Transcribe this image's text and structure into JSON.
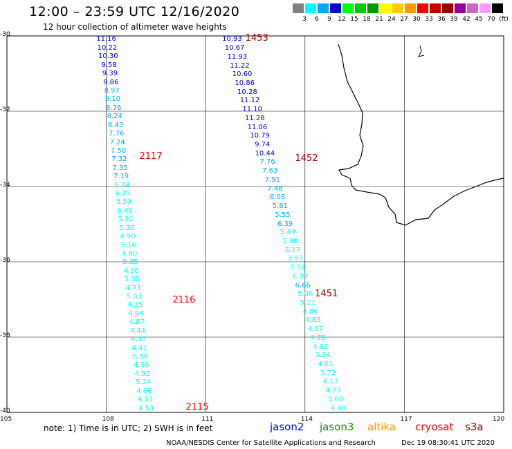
{
  "title": "12:00 – 23:59 UTC 12/16/2020",
  "subtitle": "12 hour collection of altimeter wave heights",
  "colorbar": {
    "labels": [
      "3",
      "6",
      "9",
      "12",
      "15",
      "18",
      "21",
      "24",
      "27",
      "30",
      "33",
      "36",
      "39",
      "42",
      "45",
      "70",
      "(ft)"
    ],
    "colors": [
      "#808080",
      "#00ffff",
      "#00aaff",
      "#0000cc",
      "#00ff00",
      "#00cc00",
      "#009900",
      "#ffff00",
      "#ffcc00",
      "#ff9900",
      "#ff0000",
      "#cc0000",
      "#990000",
      "#990099",
      "#cc66cc",
      "#ff99ff",
      "#000000"
    ]
  },
  "axes": {
    "lat_labels": [
      "-30",
      "-32",
      "-34",
      "-36",
      "-38",
      "-40"
    ],
    "lon_labels": [
      "105",
      "108",
      "111",
      "114",
      "117",
      "120"
    ]
  },
  "tracks": [
    {
      "id": "jason2-west",
      "lon_start": 108.0,
      "lon_end": 109.2,
      "lat_start": -30.1,
      "lat_end": -39.9,
      "values": [
        "11.16",
        "10.22",
        "10.30",
        "9.58",
        "9.39",
        "9.86",
        "8.97",
        "9.10",
        "8.76",
        "8.24",
        "8.43",
        "7.76",
        "7.24",
        "7.50",
        "7.32",
        "7.35",
        "7.19",
        "6.74",
        "6.49",
        "5.59",
        "6.49",
        "5.91",
        "5.30",
        "4.90",
        "5.16",
        "4.60",
        "5.35",
        "4.96",
        "5.35",
        "4.73",
        "5.03",
        "4.35",
        "4.94",
        "4.87",
        "4.44",
        "4.37",
        "4.41",
        "6.50",
        "4.96",
        "4.92",
        "5.24",
        "4.66",
        "4.13",
        "4.53"
      ],
      "colors": [
        "#0000cc",
        "#0000cc",
        "#0000cc",
        "#0000cc",
        "#0000cc",
        "#0000cc",
        "#00aaff",
        "#00aaff",
        "#00aaff",
        "#00aaff",
        "#00aaff",
        "#00aaff",
        "#00aaff",
        "#00aaff",
        "#00aaff",
        "#00aaff",
        "#00aaff",
        "#00ffff",
        "#00ffff",
        "#00ffff",
        "#00ffff",
        "#00ffff",
        "#00ffff",
        "#00ffff",
        "#00ffff",
        "#00ffff",
        "#00ffff",
        "#00ffff",
        "#00ffff",
        "#00ffff",
        "#00ffff",
        "#00ffff",
        "#00ffff",
        "#00ffff",
        "#00ffff",
        "#00ffff",
        "#00ffff",
        "#00ffff",
        "#00ffff",
        "#00ffff",
        "#00ffff",
        "#00ffff",
        "#00ffff",
        "#00ffff"
      ],
      "times": [
        {
          "label": "2117",
          "lat": -33.2,
          "lon": 109.0,
          "color": "#ff0000"
        },
        {
          "label": "2116",
          "lat": -37.0,
          "lon": 110.0,
          "color": "#ff0000"
        },
        {
          "label": "2115",
          "lat": -39.85,
          "lon": 110.4,
          "color": "#ff0000"
        }
      ]
    },
    {
      "id": "jason2-east",
      "lon_start": 111.8,
      "lon_end": 115.0,
      "lat_start": -30.1,
      "lat_end": -39.9,
      "values": [
        "10.93",
        "10.67",
        "11.93",
        "11.22",
        "10.60",
        "10.86",
        "10.28",
        "11.12",
        "11.10",
        "11.28",
        "11.06",
        "10.79",
        "9.74",
        "10.44",
        "7.76",
        "7.63",
        "7.91",
        "7.48",
        "6.08",
        "5.81",
        "5.55",
        "6.39",
        "5.49",
        "5.98",
        "5.17",
        "3.93",
        "5.58",
        "6.07",
        "6.66",
        "5.06",
        "5.21",
        "4.80",
        "4.83",
        "4.67",
        "4.79",
        "4.62",
        "3.54",
        "4.61",
        "5.72",
        "4.13",
        "4.73",
        "5.60",
        "4.49"
      ],
      "colors": [
        "#0000cc",
        "#0000cc",
        "#0000cc",
        "#0000cc",
        "#0000cc",
        "#0000cc",
        "#0000cc",
        "#0000cc",
        "#0000cc",
        "#0000cc",
        "#0000cc",
        "#0000cc",
        "#0000cc",
        "#0000cc",
        "#00aaff",
        "#00aaff",
        "#00aaff",
        "#00aaff",
        "#00aaff",
        "#00aaff",
        "#00aaff",
        "#00aaff",
        "#00ffff",
        "#00ffff",
        "#00ffff",
        "#00ffff",
        "#00ffff",
        "#00ffff",
        "#00aaff",
        "#00ffff",
        "#00ffff",
        "#00ffff",
        "#00ffff",
        "#00ffff",
        "#00ffff",
        "#00ffff",
        "#00ffff",
        "#00ffff",
        "#00ffff",
        "#00ffff",
        "#00ffff",
        "#00ffff",
        "#00ffff"
      ],
      "times": [
        {
          "label": "1453",
          "lat": -30.05,
          "lon": 112.2,
          "color": "#990000"
        },
        {
          "label": "1452",
          "lat": -33.25,
          "lon": 113.7,
          "color": "#990000"
        },
        {
          "label": "1451",
          "lat": -36.85,
          "lon": 114.3,
          "color": "#990000"
        }
      ]
    }
  ],
  "note": "note: 1) Time is in UTC; 2) SWH is in feet",
  "satellites": [
    {
      "name": "jason2",
      "color": "#0000ff"
    },
    {
      "name": "jason3",
      "color": "#009900"
    },
    {
      "name": "altika",
      "color": "#ff9900"
    },
    {
      "name": "cryosat",
      "color": "#ff0000"
    },
    {
      "name": "s3a",
      "color": "#990000"
    }
  ],
  "footer_left": "NOAA/NESDIS Center for Satellite Applications and Research",
  "footer_right": "Dec 19 08:30:41 UTC 2020"
}
